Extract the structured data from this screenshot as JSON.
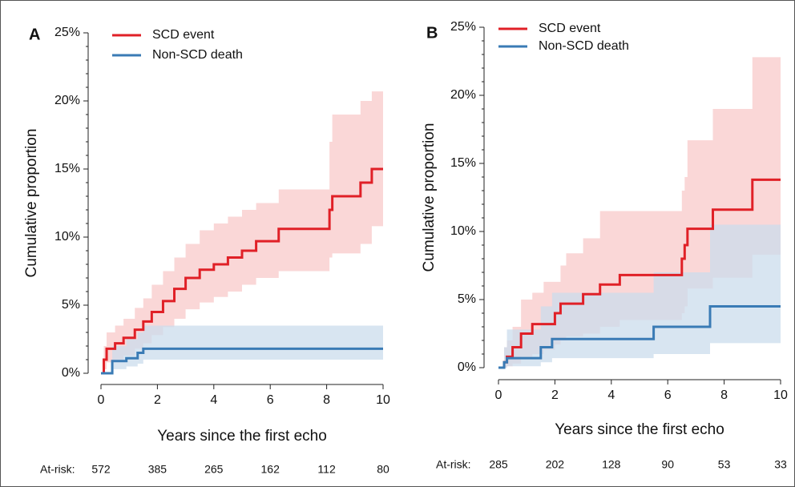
{
  "chart_data": [
    {
      "type": "step",
      "panel_label": "A",
      "x_label": "Years since the first echo",
      "y_label": "Cumulative proportion",
      "xlim": [
        0,
        10
      ],
      "xticks": [
        0,
        2,
        4,
        6,
        8,
        10
      ],
      "ylim": [
        0,
        25
      ],
      "yticks": [
        {
          "value": 0,
          "label": "0%"
        },
        {
          "value": 5,
          "label": "5%"
        },
        {
          "value": 10,
          "label": "10%"
        },
        {
          "value": 15,
          "label": "15%"
        },
        {
          "value": 20,
          "label": "20%"
        },
        {
          "value": 25,
          "label": "25%"
        }
      ],
      "legend": "upper left",
      "series": [
        {
          "name": "SCD event",
          "color": "#e02027",
          "band_color": "#f8c9ca",
          "x": [
            0,
            0.1,
            0.2,
            0.5,
            0.8,
            1.2,
            1.5,
            1.8,
            2.2,
            2.6,
            3,
            3.5,
            4,
            4.5,
            5,
            5.5,
            6.3,
            8.1,
            8.2,
            9.2,
            9.6,
            10
          ],
          "values": [
            0,
            1,
            1.8,
            2.2,
            2.6,
            3.2,
            3.8,
            4.5,
            5.3,
            6.2,
            7,
            7.6,
            8,
            8.5,
            9,
            9.7,
            10.6,
            12,
            13,
            14,
            15,
            15
          ],
          "upper": [
            0,
            2,
            3,
            3.5,
            4,
            4.8,
            5.5,
            6.5,
            7.5,
            8.5,
            9.5,
            10.5,
            11,
            11.5,
            12,
            12.5,
            13.5,
            17,
            19,
            20,
            20.7,
            20.7
          ],
          "lower": [
            0,
            0.3,
            0.8,
            1,
            1.3,
            1.8,
            2.2,
            2.8,
            3.4,
            4,
            4.7,
            5.2,
            5.6,
            6,
            6.5,
            7,
            7.5,
            8.5,
            8.8,
            9.5,
            10.8,
            10.8
          ]
        },
        {
          "name": "Non-SCD death",
          "color": "#3a7bb5",
          "band_color": "#cbdcec",
          "x": [
            0,
            0.4,
            0.9,
            1.3,
            1.5,
            10
          ],
          "values": [
            0,
            0.9,
            1.1,
            1.5,
            1.8,
            1.8
          ],
          "upper": [
            0,
            2,
            2.5,
            3,
            3.5,
            3.5
          ],
          "lower": [
            0,
            0.3,
            0.5,
            0.7,
            1,
            1
          ]
        }
      ],
      "at_risk": {
        "label": "At-risk:",
        "values": [
          572,
          385,
          265,
          162,
          112,
          80
        ]
      }
    },
    {
      "type": "step",
      "panel_label": "B",
      "x_label": "Years since the first echo",
      "y_label": "Cumulative proportion",
      "xlim": [
        0,
        10
      ],
      "xticks": [
        0,
        2,
        4,
        6,
        8,
        10
      ],
      "ylim": [
        0,
        25
      ],
      "yticks": [
        {
          "value": 0,
          "label": "0%"
        },
        {
          "value": 5,
          "label": "5%"
        },
        {
          "value": 10,
          "label": "10%"
        },
        {
          "value": 15,
          "label": "15%"
        },
        {
          "value": 20,
          "label": "20%"
        },
        {
          "value": 25,
          "label": "25%"
        }
      ],
      "legend": "upper left",
      "series": [
        {
          "name": "SCD event",
          "color": "#e02027",
          "band_color": "#f8c9ca",
          "x": [
            0,
            0.2,
            0.3,
            0.5,
            0.8,
            1.2,
            1.6,
            2,
            2.2,
            2.4,
            3,
            3.6,
            4.3,
            6.5,
            6.6,
            6.7,
            7.6,
            9,
            10
          ],
          "values": [
            0,
            0.4,
            0.8,
            1.5,
            2.5,
            3.2,
            3.2,
            4,
            4.7,
            4.7,
            5.4,
            6.1,
            6.8,
            8,
            9,
            10.2,
            11.6,
            13.8,
            13.8
          ],
          "upper": [
            0,
            1.5,
            2,
            3,
            5,
            5.5,
            6.3,
            6.3,
            7.5,
            8.4,
            9.5,
            11.5,
            11.5,
            13,
            14,
            16.7,
            19,
            22.8,
            22.8
          ],
          "lower": [
            0,
            0,
            0.1,
            0.3,
            0.8,
            1,
            1.3,
            1.7,
            2,
            2.3,
            2.5,
            3,
            3.5,
            4,
            4.5,
            5.8,
            6.6,
            8.3,
            8.3
          ]
        },
        {
          "name": "Non-SCD death",
          "color": "#3a7bb5",
          "band_color": "#cbdcec",
          "x": [
            0,
            0.2,
            0.3,
            1.5,
            1.9,
            5.5,
            7.5,
            10
          ],
          "values": [
            0,
            0.4,
            0.7,
            1.5,
            2.1,
            3,
            4.5,
            4.5
          ],
          "upper": [
            0,
            1.5,
            2.8,
            4.5,
            5.5,
            7,
            10.5,
            10.5
          ],
          "lower": [
            0,
            0,
            0.1,
            0.4,
            0.7,
            1,
            1.8,
            1.8
          ]
        }
      ],
      "at_risk": {
        "label": "At-risk:",
        "values": [
          285,
          202,
          128,
          90,
          53,
          33
        ]
      }
    }
  ]
}
